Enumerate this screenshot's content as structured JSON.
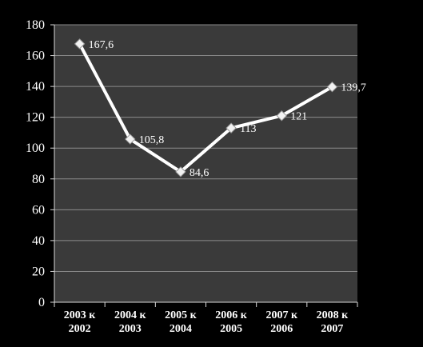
{
  "chart_data": {
    "type": "line",
    "categories": [
      [
        "2003 к",
        "2002"
      ],
      [
        "2004 к",
        "2003"
      ],
      [
        "2005 к",
        "2004"
      ],
      [
        "2006 к",
        "2005"
      ],
      [
        "2007 к",
        "2006"
      ],
      [
        "2008 к",
        "2007"
      ]
    ],
    "series": [
      {
        "values": [
          167.6,
          105.8,
          84.6,
          113,
          121,
          139.7
        ],
        "data_labels": [
          "167,6",
          "105,8",
          "84,6",
          "113",
          "121",
          "139,7"
        ],
        "color": "#ffffff",
        "marker": "diamond"
      }
    ],
    "ylim": [
      0,
      180
    ],
    "yticks": [
      0,
      20,
      40,
      60,
      80,
      100,
      120,
      140,
      160,
      180
    ],
    "grid": true,
    "legend": false,
    "colors": {
      "page_background": "#000000",
      "plot_background": "#3a3a3a",
      "gridline": "#8c8c8c",
      "axis": "#d9d9d9",
      "text": "#ffffff"
    }
  }
}
